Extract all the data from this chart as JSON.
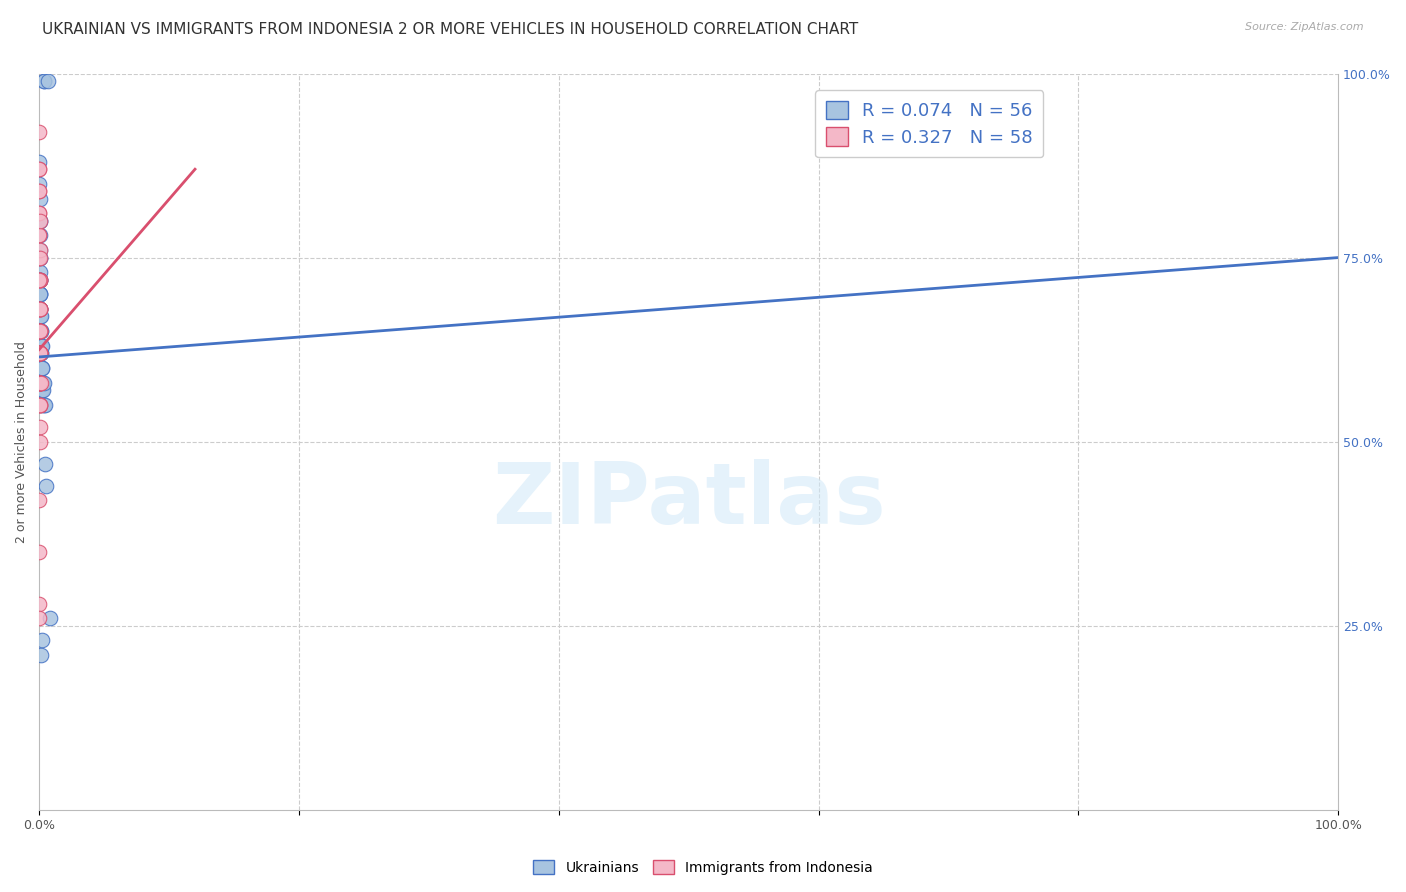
{
  "title": "UKRAINIAN VS IMMIGRANTS FROM INDONESIA 2 OR MORE VEHICLES IN HOUSEHOLD CORRELATION CHART",
  "source": "Source: ZipAtlas.com",
  "ylabel": "2 or more Vehicles in Household",
  "watermark": "ZIPatlas",
  "blue_R": 0.074,
  "blue_N": 56,
  "pink_R": 0.327,
  "pink_N": 58,
  "blue_label": "Ukrainians",
  "pink_label": "Immigrants from Indonesia",
  "blue_color": "#a8c4e0",
  "blue_line_color": "#4472c4",
  "pink_color": "#f4b8c8",
  "pink_line_color": "#d94f6e",
  "blue_scatter": [
    [
      0.34,
      0.99
    ],
    [
      0.35,
      0.99
    ],
    [
      0.02,
      0.88
    ],
    [
      0.02,
      0.85
    ],
    [
      0.03,
      0.83
    ],
    [
      0.03,
      0.8
    ],
    [
      0.04,
      0.78
    ],
    [
      0.04,
      0.75
    ],
    [
      0.05,
      0.8
    ],
    [
      0.05,
      0.76
    ],
    [
      0.05,
      0.72
    ],
    [
      0.05,
      0.68
    ],
    [
      0.06,
      0.73
    ],
    [
      0.06,
      0.7
    ],
    [
      0.06,
      0.67
    ],
    [
      0.07,
      0.75
    ],
    [
      0.07,
      0.72
    ],
    [
      0.07,
      0.68
    ],
    [
      0.08,
      0.7
    ],
    [
      0.08,
      0.67
    ],
    [
      0.09,
      0.72
    ],
    [
      0.09,
      0.68
    ],
    [
      0.09,
      0.65
    ],
    [
      0.1,
      0.7
    ],
    [
      0.1,
      0.67
    ],
    [
      0.1,
      0.63
    ],
    [
      0.11,
      0.67
    ],
    [
      0.11,
      0.63
    ],
    [
      0.12,
      0.65
    ],
    [
      0.12,
      0.62
    ],
    [
      0.13,
      0.63
    ],
    [
      0.13,
      0.6
    ],
    [
      0.14,
      0.65
    ],
    [
      0.14,
      0.62
    ],
    [
      0.15,
      0.63
    ],
    [
      0.15,
      0.6
    ],
    [
      0.16,
      0.63
    ],
    [
      0.16,
      0.6
    ],
    [
      0.18,
      0.6
    ],
    [
      0.18,
      0.57
    ],
    [
      0.2,
      0.63
    ],
    [
      0.21,
      0.6
    ],
    [
      0.22,
      0.57
    ],
    [
      0.23,
      0.55
    ],
    [
      0.25,
      0.6
    ],
    [
      0.27,
      0.58
    ],
    [
      0.3,
      0.57
    ],
    [
      0.35,
      0.55
    ],
    [
      0.4,
      0.58
    ],
    [
      0.42,
      0.55
    ],
    [
      0.53,
      0.44
    ],
    [
      0.16,
      0.21
    ],
    [
      0.22,
      0.23
    ],
    [
      0.81,
      0.26
    ],
    [
      0.48,
      0.47
    ],
    [
      0.66,
      0.99
    ]
  ],
  "pink_scatter": [
    [
      0.01,
      0.92
    ],
    [
      0.01,
      0.87
    ],
    [
      0.01,
      0.84
    ],
    [
      0.01,
      0.81
    ],
    [
      0.01,
      0.78
    ],
    [
      0.01,
      0.75
    ],
    [
      0.02,
      0.87
    ],
    [
      0.02,
      0.84
    ],
    [
      0.02,
      0.81
    ],
    [
      0.02,
      0.78
    ],
    [
      0.02,
      0.75
    ],
    [
      0.02,
      0.72
    ],
    [
      0.02,
      0.68
    ],
    [
      0.02,
      0.65
    ],
    [
      0.02,
      0.62
    ],
    [
      0.03,
      0.8
    ],
    [
      0.03,
      0.76
    ],
    [
      0.03,
      0.72
    ],
    [
      0.03,
      0.68
    ],
    [
      0.03,
      0.65
    ],
    [
      0.03,
      0.62
    ],
    [
      0.03,
      0.58
    ],
    [
      0.03,
      0.55
    ],
    [
      0.04,
      0.75
    ],
    [
      0.04,
      0.72
    ],
    [
      0.04,
      0.68
    ],
    [
      0.04,
      0.65
    ],
    [
      0.04,
      0.62
    ],
    [
      0.04,
      0.58
    ],
    [
      0.05,
      0.72
    ],
    [
      0.05,
      0.68
    ],
    [
      0.05,
      0.65
    ],
    [
      0.05,
      0.62
    ],
    [
      0.05,
      0.58
    ],
    [
      0.06,
      0.68
    ],
    [
      0.06,
      0.65
    ],
    [
      0.06,
      0.62
    ],
    [
      0.06,
      0.58
    ],
    [
      0.07,
      0.65
    ],
    [
      0.07,
      0.62
    ],
    [
      0.07,
      0.58
    ],
    [
      0.08,
      0.65
    ],
    [
      0.08,
      0.62
    ],
    [
      0.09,
      0.62
    ],
    [
      0.09,
      0.58
    ],
    [
      0.1,
      0.62
    ],
    [
      0.1,
      0.58
    ],
    [
      0.11,
      0.58
    ],
    [
      0.01,
      0.42
    ],
    [
      0.01,
      0.35
    ],
    [
      0.01,
      0.28
    ],
    [
      0.01,
      0.26
    ],
    [
      0.01,
      0.72
    ],
    [
      0.02,
      0.55
    ],
    [
      0.03,
      0.52
    ],
    [
      0.04,
      0.5
    ],
    [
      0.05,
      0.55
    ],
    [
      0.06,
      0.55
    ]
  ],
  "xlim": [
    0,
    1.0
  ],
  "ylim": [
    0,
    1.0
  ],
  "blue_line_x": [
    0.0,
    1.0
  ],
  "blue_line_y": [
    0.615,
    0.75
  ],
  "pink_line_x": [
    0.0,
    0.12
  ],
  "pink_line_y": [
    0.625,
    0.87
  ],
  "ytick_right_labels": [
    "100.0%",
    "75.0%",
    "50.0%",
    "25.0%"
  ],
  "ytick_right_values": [
    1.0,
    0.75,
    0.5,
    0.25
  ],
  "grid_color": "#cccccc",
  "background_color": "#ffffff",
  "title_fontsize": 11,
  "axis_fontsize": 9,
  "legend_fontsize": 13
}
